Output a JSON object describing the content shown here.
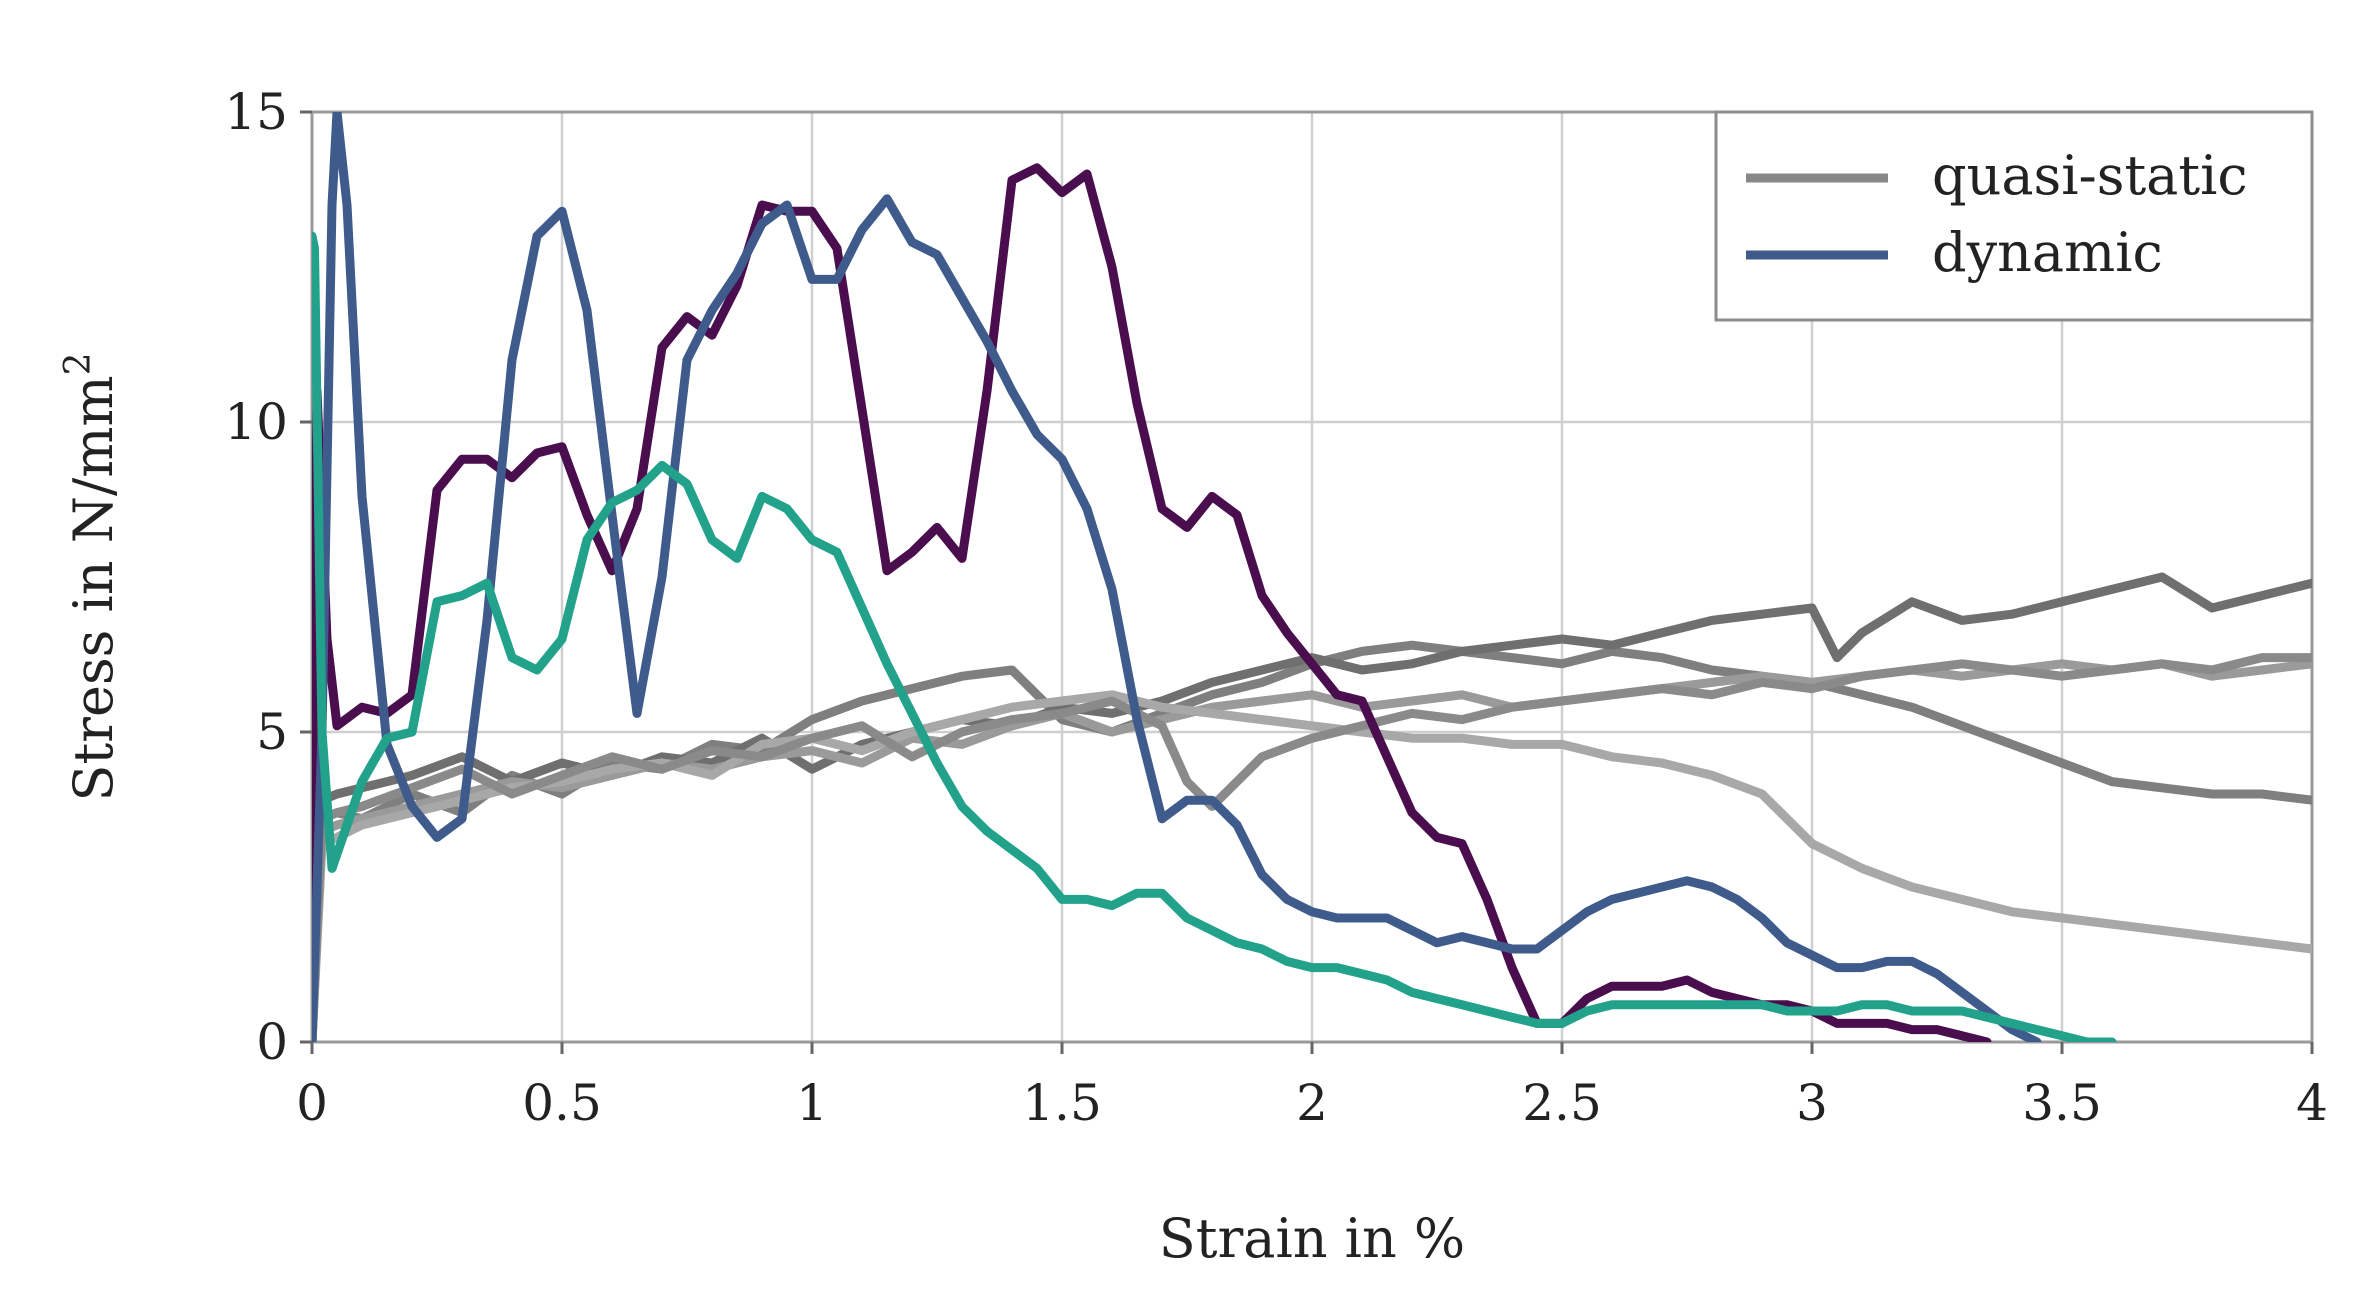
{
  "chart_data": {
    "type": "line",
    "title": "",
    "xlabel": "Strain in %",
    "ylabel": "Stress in N/mm",
    "ylabel_sup": "2",
    "xlim": [
      0,
      4
    ],
    "ylim": [
      0,
      15
    ],
    "x_ticks": [
      0,
      0.5,
      1,
      1.5,
      2,
      2.5,
      3,
      3.5,
      4
    ],
    "x_tick_labels": [
      "0",
      "0.5",
      "1",
      "1.5",
      "2",
      "2.5",
      "3",
      "3.5",
      "4"
    ],
    "y_ticks": [
      0,
      5,
      10,
      15
    ],
    "y_tick_labels": [
      "0",
      "5",
      "10",
      "15"
    ],
    "grid": true,
    "legend_position": "top-right",
    "legend": [
      {
        "label": "quasi-static",
        "color": "#888888"
      },
      {
        "label": "dynamic",
        "color": "#3f5b8c"
      }
    ],
    "series": [
      {
        "name": "quasi-static 1",
        "group": "quasi-static",
        "color": "#7f7f7f",
        "x": [
          0,
          0.02,
          0.05,
          0.1,
          0.2,
          0.3,
          0.4,
          0.5,
          0.6,
          0.7,
          0.8,
          0.9,
          1.0,
          1.1,
          1.2,
          1.3,
          1.4,
          1.5,
          1.6,
          1.7,
          1.8,
          1.9,
          2.0,
          2.1,
          2.2,
          2.3,
          2.4,
          2.5,
          2.6,
          2.7,
          2.8,
          2.9,
          3.0,
          3.1,
          3.2,
          3.3,
          3.4,
          3.5,
          3.6,
          3.7,
          3.8,
          3.9,
          4.0
        ],
        "y": [
          0,
          3.6,
          3.7,
          3.6,
          4.0,
          3.7,
          4.3,
          4.0,
          4.5,
          4.4,
          4.8,
          4.7,
          5.2,
          5.5,
          5.7,
          5.9,
          6.0,
          5.2,
          5.0,
          5.3,
          5.6,
          5.8,
          6.1,
          6.3,
          6.4,
          6.3,
          6.2,
          6.1,
          6.3,
          6.2,
          6.0,
          5.9,
          5.8,
          5.6,
          5.4,
          5.1,
          4.8,
          4.5,
          4.2,
          4.1,
          4.0,
          4.0,
          3.9
        ]
      },
      {
        "name": "quasi-static 2",
        "group": "quasi-static",
        "color": "#6f6f6f",
        "x": [
          0,
          0.02,
          0.05,
          0.1,
          0.2,
          0.3,
          0.4,
          0.5,
          0.6,
          0.7,
          0.8,
          0.9,
          1.0,
          1.1,
          1.2,
          1.3,
          1.4,
          1.5,
          1.6,
          1.7,
          1.8,
          1.9,
          2.0,
          2.1,
          2.2,
          2.3,
          2.4,
          2.5,
          2.6,
          2.7,
          2.8,
          2.9,
          3.0,
          3.05,
          3.1,
          3.2,
          3.3,
          3.4,
          3.5,
          3.6,
          3.7,
          3.8,
          3.9,
          4.0
        ],
        "y": [
          0,
          3.9,
          4.0,
          4.1,
          4.3,
          4.6,
          4.2,
          4.5,
          4.3,
          4.6,
          4.5,
          4.9,
          4.4,
          4.8,
          5.0,
          5.2,
          5.1,
          5.4,
          5.3,
          5.5,
          5.8,
          6.0,
          6.2,
          6.0,
          6.1,
          6.3,
          6.4,
          6.5,
          6.4,
          6.6,
          6.8,
          6.9,
          7.0,
          6.2,
          6.6,
          7.1,
          6.8,
          6.9,
          7.1,
          7.3,
          7.5,
          7.0,
          7.2,
          7.4
        ]
      },
      {
        "name": "quasi-static 3",
        "group": "quasi-static",
        "color": "#9a9a9a",
        "x": [
          0,
          0.02,
          0.05,
          0.1,
          0.2,
          0.3,
          0.4,
          0.5,
          0.6,
          0.7,
          0.8,
          0.9,
          1.0,
          1.1,
          1.2,
          1.3,
          1.4,
          1.5,
          1.6,
          1.7,
          1.8,
          1.9,
          2.0,
          2.1,
          2.2,
          2.3,
          2.4,
          2.5,
          2.6,
          2.7,
          2.8,
          2.9,
          3.0,
          3.1,
          3.2,
          3.3,
          3.4,
          3.5,
          3.6,
          3.7,
          3.8,
          3.9,
          4.0
        ],
        "y": [
          0,
          3.4,
          3.5,
          3.6,
          3.8,
          4.0,
          4.2,
          4.1,
          4.3,
          4.5,
          4.4,
          4.6,
          4.7,
          4.5,
          4.9,
          4.8,
          5.1,
          5.3,
          5.0,
          5.2,
          5.4,
          5.5,
          5.6,
          5.4,
          5.5,
          5.6,
          5.4,
          5.5,
          5.6,
          5.7,
          5.8,
          5.9,
          5.8,
          5.9,
          6.0,
          5.9,
          6.0,
          6.1,
          6.0,
          6.1,
          5.9,
          6.0,
          6.1
        ]
      },
      {
        "name": "quasi-static 4",
        "group": "quasi-static",
        "color": "#a8a8a8",
        "x": [
          0,
          0.02,
          0.05,
          0.1,
          0.2,
          0.3,
          0.4,
          0.5,
          0.6,
          0.7,
          0.8,
          0.9,
          1.0,
          1.1,
          1.2,
          1.3,
          1.4,
          1.5,
          1.6,
          1.7,
          1.8,
          1.9,
          2.0,
          2.1,
          2.2,
          2.3,
          2.4,
          2.5,
          2.6,
          2.7,
          2.8,
          2.9,
          3.0,
          3.1,
          3.2,
          3.3,
          3.4,
          3.5,
          3.6,
          3.7,
          3.8,
          3.9,
          4.0
        ],
        "y": [
          0,
          3.2,
          3.3,
          3.5,
          3.7,
          3.9,
          4.1,
          4.2,
          4.4,
          4.5,
          4.3,
          4.8,
          4.9,
          4.7,
          5.0,
          5.2,
          5.4,
          5.5,
          5.6,
          5.4,
          5.3,
          5.2,
          5.1,
          5.0,
          4.9,
          4.9,
          4.8,
          4.8,
          4.6,
          4.5,
          4.3,
          4.0,
          3.2,
          2.8,
          2.5,
          2.3,
          2.1,
          2.0,
          1.9,
          1.8,
          1.7,
          1.6,
          1.5
        ]
      },
      {
        "name": "quasi-static 5",
        "group": "quasi-static",
        "color": "#8a8a8a",
        "x": [
          0,
          0.02,
          0.05,
          0.1,
          0.2,
          0.3,
          0.4,
          0.5,
          0.6,
          0.7,
          0.8,
          0.9,
          1.0,
          1.1,
          1.2,
          1.3,
          1.4,
          1.5,
          1.6,
          1.7,
          1.75,
          1.8,
          1.9,
          2.0,
          2.1,
          2.2,
          2.3,
          2.4,
          2.5,
          2.6,
          2.7,
          2.8,
          2.9,
          3.0,
          3.1,
          3.2,
          3.3,
          3.4,
          3.5,
          3.6,
          3.7,
          3.8,
          3.9,
          4.0
        ],
        "y": [
          0,
          3.6,
          3.7,
          3.8,
          4.1,
          4.4,
          4.0,
          4.3,
          4.6,
          4.4,
          4.7,
          4.6,
          4.9,
          5.1,
          4.6,
          5.0,
          5.2,
          5.3,
          5.5,
          5.1,
          4.2,
          3.8,
          4.6,
          4.9,
          5.1,
          5.3,
          5.2,
          5.4,
          5.5,
          5.6,
          5.7,
          5.6,
          5.8,
          5.7,
          5.9,
          6.0,
          6.1,
          6.0,
          5.9,
          6.0,
          6.1,
          6.0,
          6.2,
          6.2
        ]
      },
      {
        "name": "dynamic 1",
        "group": "dynamic",
        "color": "#4a0e4e",
        "x": [
          0,
          0.01,
          0.03,
          0.05,
          0.1,
          0.15,
          0.2,
          0.25,
          0.3,
          0.35,
          0.4,
          0.45,
          0.5,
          0.55,
          0.6,
          0.65,
          0.7,
          0.75,
          0.8,
          0.85,
          0.9,
          0.95,
          1.0,
          1.05,
          1.1,
          1.15,
          1.2,
          1.25,
          1.3,
          1.35,
          1.4,
          1.45,
          1.5,
          1.55,
          1.6,
          1.65,
          1.7,
          1.75,
          1.8,
          1.85,
          1.9,
          1.95,
          2.0,
          2.05,
          2.1,
          2.15,
          2.2,
          2.25,
          2.3,
          2.35,
          2.4,
          2.45,
          2.5,
          2.55,
          2.6,
          2.65,
          2.7,
          2.75,
          2.8,
          2.85,
          2.9,
          2.95,
          3.0,
          3.05,
          3.1,
          3.15,
          3.2,
          3.25,
          3.3,
          3.35
        ],
        "y": [
          0,
          10.5,
          6.5,
          5.1,
          5.4,
          5.3,
          5.6,
          8.9,
          9.4,
          9.4,
          9.1,
          9.5,
          9.6,
          8.5,
          7.6,
          8.6,
          11.2,
          11.7,
          11.4,
          12.2,
          13.5,
          13.4,
          13.4,
          12.8,
          10.2,
          7.6,
          7.9,
          8.3,
          7.8,
          10.5,
          13.9,
          14.1,
          13.7,
          14.0,
          12.5,
          10.3,
          8.6,
          8.3,
          8.8,
          8.5,
          7.2,
          6.6,
          6.1,
          5.6,
          5.5,
          4.6,
          3.7,
          3.3,
          3.2,
          2.3,
          1.2,
          0.3,
          0.3,
          0.7,
          0.9,
          0.9,
          0.9,
          1.0,
          0.8,
          0.7,
          0.6,
          0.6,
          0.5,
          0.3,
          0.3,
          0.3,
          0.2,
          0.2,
          0.1,
          0.0
        ]
      },
      {
        "name": "dynamic 2",
        "group": "dynamic",
        "color": "#3f5b8c",
        "x": [
          0,
          0.02,
          0.04,
          0.05,
          0.07,
          0.1,
          0.15,
          0.2,
          0.25,
          0.3,
          0.35,
          0.4,
          0.45,
          0.5,
          0.55,
          0.6,
          0.65,
          0.7,
          0.75,
          0.8,
          0.85,
          0.9,
          0.95,
          1.0,
          1.05,
          1.1,
          1.15,
          1.2,
          1.25,
          1.3,
          1.35,
          1.4,
          1.45,
          1.5,
          1.55,
          1.6,
          1.65,
          1.7,
          1.75,
          1.8,
          1.85,
          1.9,
          1.95,
          2.0,
          2.05,
          2.1,
          2.15,
          2.2,
          2.25,
          2.3,
          2.35,
          2.4,
          2.45,
          2.5,
          2.55,
          2.6,
          2.65,
          2.7,
          2.75,
          2.8,
          2.85,
          2.9,
          2.95,
          3.0,
          3.05,
          3.1,
          3.15,
          3.2,
          3.25,
          3.3,
          3.35,
          3.4,
          3.45
        ],
        "y": [
          0,
          5.0,
          13.5,
          15.0,
          13.5,
          8.8,
          4.8,
          3.8,
          3.3,
          3.6,
          6.8,
          11.0,
          13.0,
          13.4,
          11.8,
          8.5,
          5.3,
          7.5,
          11.0,
          11.8,
          12.4,
          13.2,
          13.5,
          12.3,
          12.3,
          13.1,
          13.6,
          12.9,
          12.7,
          12.0,
          11.3,
          10.5,
          9.8,
          9.4,
          8.6,
          7.3,
          5.2,
          3.6,
          3.9,
          3.9,
          3.5,
          2.7,
          2.3,
          2.1,
          2.0,
          2.0,
          2.0,
          1.8,
          1.6,
          1.7,
          1.6,
          1.5,
          1.5,
          1.8,
          2.1,
          2.3,
          2.4,
          2.5,
          2.6,
          2.5,
          2.3,
          2.0,
          1.6,
          1.4,
          1.2,
          1.2,
          1.3,
          1.3,
          1.1,
          0.8,
          0.5,
          0.2,
          0.0
        ]
      },
      {
        "name": "dynamic 3",
        "group": "dynamic",
        "color": "#22a28a",
        "x": [
          0,
          0.005,
          0.02,
          0.04,
          0.07,
          0.1,
          0.15,
          0.2,
          0.25,
          0.3,
          0.35,
          0.4,
          0.45,
          0.5,
          0.55,
          0.6,
          0.65,
          0.7,
          0.75,
          0.8,
          0.85,
          0.9,
          0.95,
          1.0,
          1.05,
          1.1,
          1.15,
          1.2,
          1.25,
          1.3,
          1.35,
          1.4,
          1.45,
          1.5,
          1.55,
          1.6,
          1.65,
          1.7,
          1.75,
          1.8,
          1.85,
          1.9,
          1.95,
          2.0,
          2.05,
          2.1,
          2.15,
          2.2,
          2.25,
          2.3,
          2.35,
          2.4,
          2.45,
          2.5,
          2.55,
          2.6,
          2.65,
          2.7,
          2.75,
          2.8,
          2.85,
          2.9,
          2.95,
          3.0,
          3.05,
          3.1,
          3.15,
          3.2,
          3.25,
          3.3,
          3.35,
          3.4,
          3.45,
          3.5,
          3.55,
          3.6
        ],
        "y": [
          13.0,
          12.8,
          5.0,
          2.8,
          3.5,
          4.2,
          4.9,
          5.0,
          7.1,
          7.2,
          7.4,
          6.2,
          6.0,
          6.5,
          8.1,
          8.7,
          8.9,
          9.3,
          9.0,
          8.1,
          7.8,
          8.8,
          8.6,
          8.1,
          7.9,
          7.0,
          6.1,
          5.3,
          4.5,
          3.8,
          3.4,
          3.1,
          2.8,
          2.3,
          2.3,
          2.2,
          2.4,
          2.4,
          2.0,
          1.8,
          1.6,
          1.5,
          1.3,
          1.2,
          1.2,
          1.1,
          1.0,
          0.8,
          0.7,
          0.6,
          0.5,
          0.4,
          0.3,
          0.3,
          0.5,
          0.6,
          0.6,
          0.6,
          0.6,
          0.6,
          0.6,
          0.6,
          0.5,
          0.5,
          0.5,
          0.6,
          0.6,
          0.5,
          0.5,
          0.5,
          0.4,
          0.3,
          0.2,
          0.1,
          0.0,
          0.0
        ]
      }
    ]
  }
}
